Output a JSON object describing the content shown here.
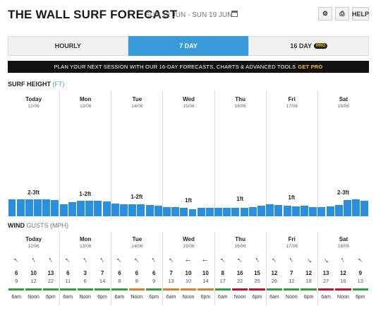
{
  "header": {
    "title": "THE WALL SURF FORECAST",
    "date_range": "SUN 12 JUN - SUN 19 JUN",
    "help_label": "HELP"
  },
  "tabs": [
    {
      "label": "HOURLY",
      "active": false
    },
    {
      "label": "7 DAY",
      "active": true
    },
    {
      "label": "16 DAY",
      "active": false,
      "badge": "PRO"
    }
  ],
  "banner": {
    "text": "PLAN YOUR NEXT SESSION WITH OUR 16-DAY FORECASTS, CHARTS & ADVANCED TOOLS",
    "cta": "GET PRO"
  },
  "surf": {
    "label": "SURF HEIGHT",
    "unit": "(FT)"
  },
  "wind": {
    "label": "WIND",
    "unit_label": "GUSTS (MPH)"
  },
  "days": [
    {
      "name": "Today",
      "date": "12/06",
      "wave": "2-3ft"
    },
    {
      "name": "Mon",
      "date": "13/06",
      "wave": "1-2ft"
    },
    {
      "name": "Tue",
      "date": "14/06",
      "wave": "1-2ft"
    },
    {
      "name": "Wed",
      "date": "15/06",
      "wave": "1ft"
    },
    {
      "name": "Thu",
      "date": "16/06",
      "wave": "1ft"
    },
    {
      "name": "Fri",
      "date": "17/06",
      "wave": "1ft"
    },
    {
      "name": "Sat",
      "date": "18/06",
      "wave": "2-3ft"
    }
  ],
  "chart_data": {
    "type": "bar",
    "title": "SURF HEIGHT",
    "ylabel": "(FT)",
    "values": [
      2.3,
      2.3,
      2.3,
      2.3,
      2.3,
      2.2,
      1.6,
      1.9,
      2.1,
      2.1,
      2.1,
      2.0,
      1.7,
      1.6,
      1.6,
      1.6,
      1.5,
      1.4,
      1.2,
      1.2,
      1.1,
      1.0,
      1.1,
      1.1,
      1.1,
      1.1,
      1.1,
      1.1,
      1.2,
      1.4,
      1.6,
      1.5,
      1.4,
      1.3,
      1.4,
      1.2,
      1.2,
      1.3,
      1.5,
      2.2,
      2.3,
      2.1
    ]
  },
  "time_labels": [
    "6am",
    "Noon",
    "6pm"
  ],
  "wind_data": [
    {
      "speeds": [
        "6",
        "10",
        "13"
      ],
      "gusts": [
        "9",
        "12",
        "22"
      ],
      "dirs": [
        315,
        330,
        330
      ],
      "ratings": [
        "green",
        "green",
        "green"
      ]
    },
    {
      "speeds": [
        "6",
        "3",
        "7"
      ],
      "gusts": [
        "11",
        "6",
        "14"
      ],
      "dirs": [
        315,
        330,
        330
      ],
      "ratings": [
        "green",
        "green",
        "green"
      ]
    },
    {
      "speeds": [
        "6",
        "6",
        "6"
      ],
      "gusts": [
        "8",
        "8",
        "9"
      ],
      "dirs": [
        315,
        315,
        330
      ],
      "ratings": [
        "green",
        "orange",
        "green"
      ]
    },
    {
      "speeds": [
        "7",
        "10",
        "10"
      ],
      "gusts": [
        "13",
        "10",
        "14"
      ],
      "dirs": [
        315,
        270,
        270
      ],
      "ratings": [
        "orange",
        "orange",
        "orange"
      ]
    },
    {
      "speeds": [
        "8",
        "16",
        "15"
      ],
      "gusts": [
        "17",
        "22",
        "25"
      ],
      "dirs": [
        315,
        315,
        330
      ],
      "ratings": [
        "green",
        "red",
        "red"
      ]
    },
    {
      "speeds": [
        "12",
        "7",
        "12"
      ],
      "gusts": [
        "26",
        "12",
        "18"
      ],
      "dirs": [
        315,
        330,
        135
      ],
      "ratings": [
        "green",
        "green",
        "green"
      ]
    },
    {
      "speeds": [
        "13",
        "12",
        "9"
      ],
      "gusts": [
        "27",
        "16",
        "13"
      ],
      "dirs": [
        135,
        330,
        315
      ],
      "ratings": [
        "red",
        "red",
        "green"
      ]
    }
  ],
  "colors": {
    "bar": "#2b8fe0",
    "accent": "#3a9bdc",
    "green": "#2e9e3e",
    "orange": "#e07b2a",
    "red": "#c8102e"
  }
}
